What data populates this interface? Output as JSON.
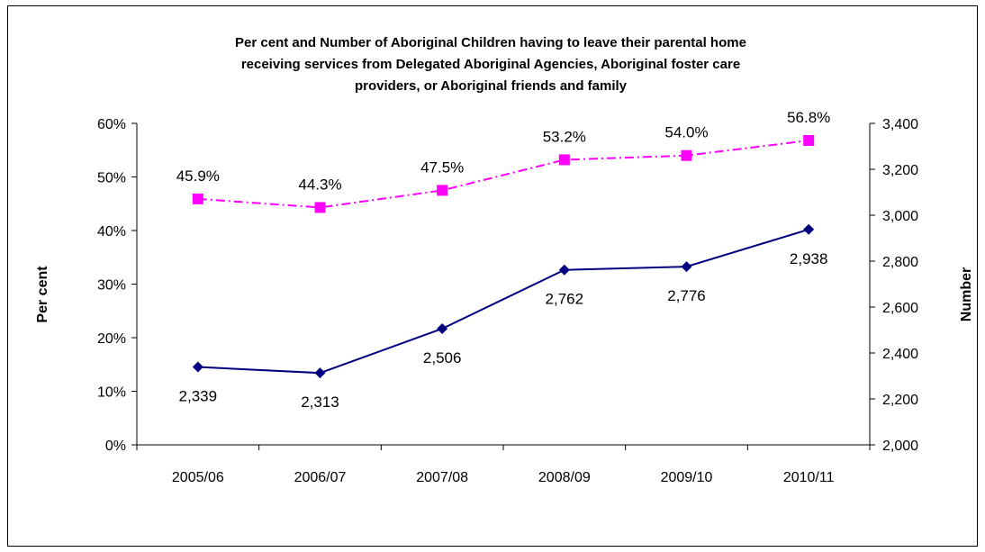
{
  "chart_data": {
    "type": "line",
    "title_lines": [
      "Per cent and Number of Aboriginal Children having to leave their parental home",
      "receiving services from Delegated Aboriginal Agencies, Aboriginal foster care",
      "providers, or Aboriginal friends and family"
    ],
    "categories": [
      "2005/06",
      "2006/07",
      "2007/08",
      "2008/09",
      "2009/10",
      "2010/11"
    ],
    "y_left": {
      "label": "Per cent",
      "min": 0,
      "max": 60,
      "step": 10,
      "tick_labels": [
        "0%",
        "10%",
        "20%",
        "30%",
        "40%",
        "50%",
        "60%"
      ]
    },
    "y_right": {
      "label": "Number",
      "min": 2000,
      "max": 3400,
      "step": 200,
      "tick_labels": [
        "2,000",
        "2,200",
        "2,400",
        "2,600",
        "2,800",
        "3,000",
        "3,200",
        "3,400"
      ]
    },
    "series": [
      {
        "axis": "left",
        "values": [
          45.9,
          44.3,
          47.5,
          53.2,
          54.0,
          56.8
        ],
        "labels": [
          "45.9%",
          "44.3%",
          "47.5%",
          "53.2%",
          "54.0%",
          "56.8%"
        ],
        "color": "#ff00ff",
        "line_style": "dash-dot",
        "marker": "square"
      },
      {
        "axis": "right",
        "values": [
          2339,
          2313,
          2506,
          2762,
          2776,
          2938
        ],
        "labels": [
          "2,339",
          "2,313",
          "2,506",
          "2,762",
          "2,776",
          "2,938"
        ],
        "color": "#000080",
        "line_style": "solid",
        "marker": "diamond"
      }
    ],
    "grid": false,
    "legend": "none"
  }
}
